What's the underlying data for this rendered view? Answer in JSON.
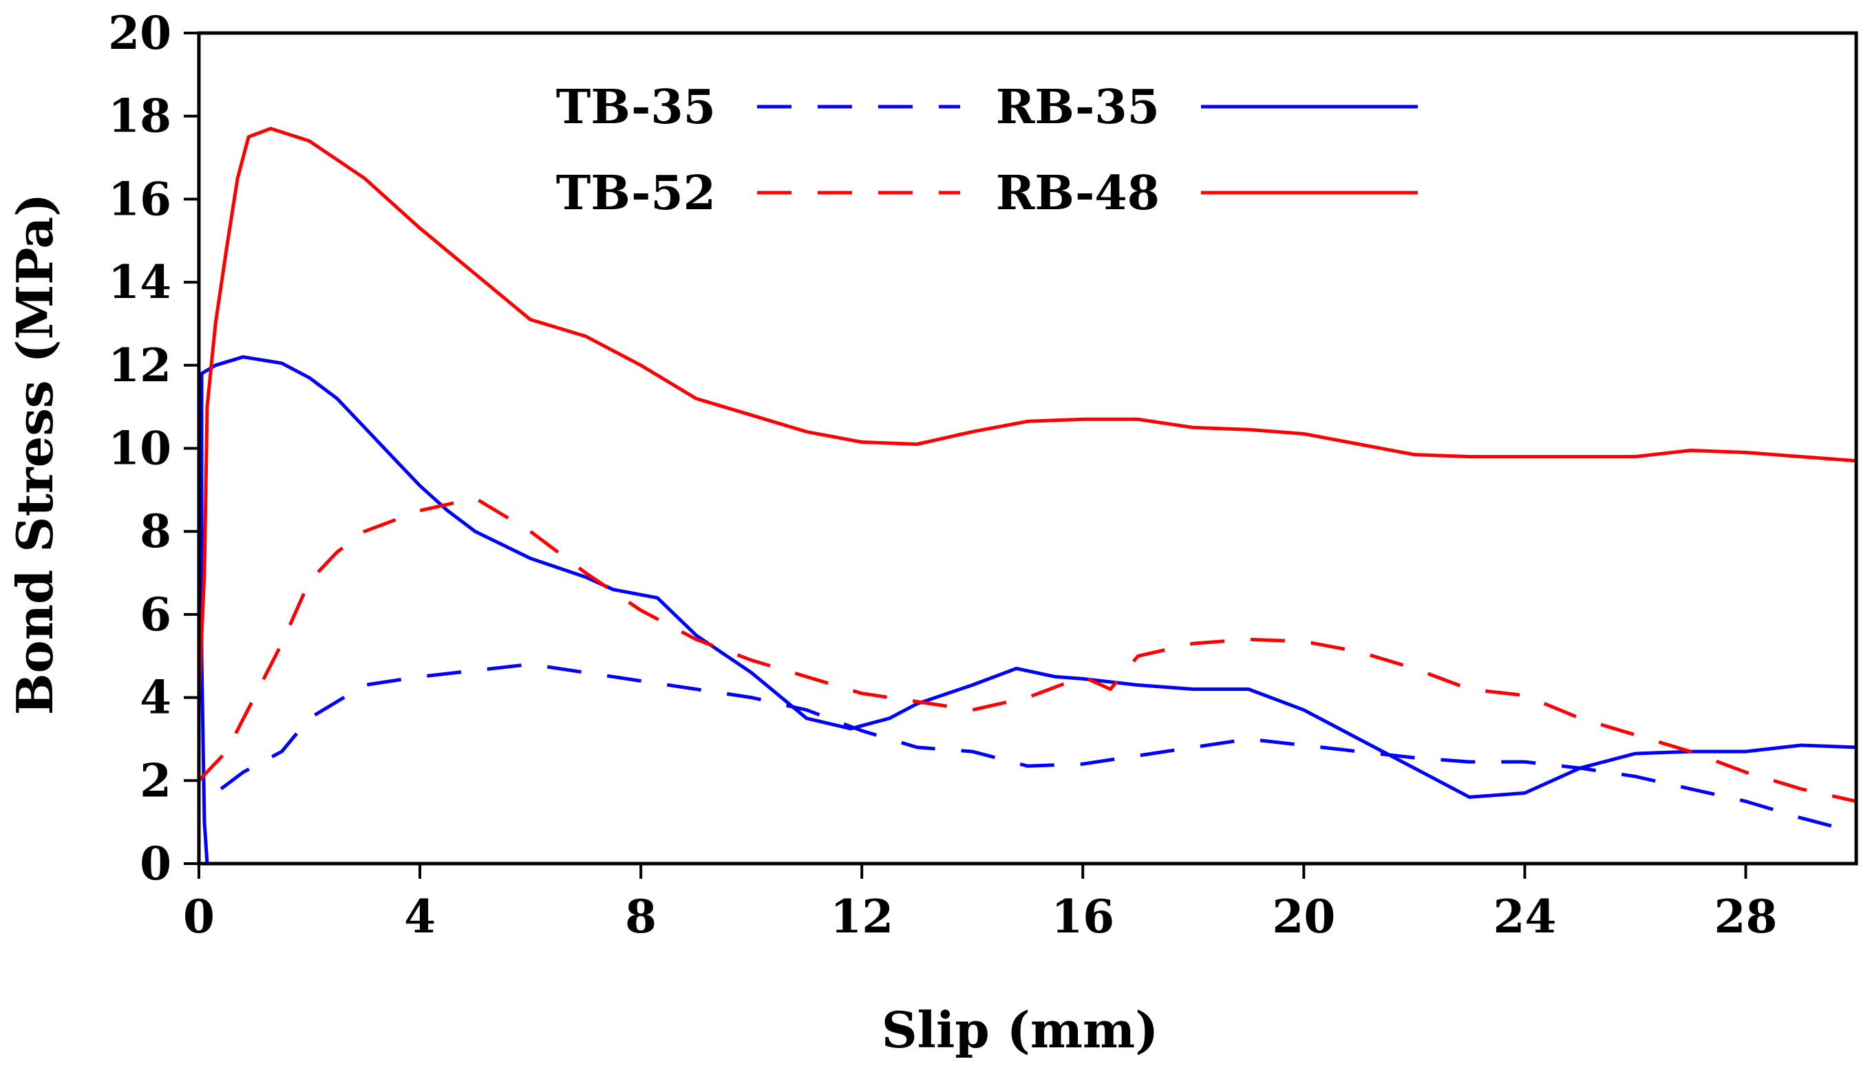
{
  "chart_data": {
    "type": "line",
    "title": "",
    "xlabel": "Slip (mm)",
    "ylabel": "Bond Stress (MPa)",
    "xlim": [
      0,
      30
    ],
    "ylim": [
      0,
      20
    ],
    "x_ticks": [
      0,
      4,
      8,
      12,
      16,
      20,
      24,
      28
    ],
    "y_ticks": [
      0,
      2,
      4,
      6,
      8,
      10,
      12,
      14,
      16,
      18,
      20
    ],
    "x_tick_labels": [
      "0",
      "4",
      "8",
      "12",
      "16",
      "20",
      "24",
      "28"
    ],
    "y_tick_labels": [
      "0",
      "2",
      "4",
      "6",
      "8",
      "10",
      "12",
      "14",
      "16",
      "18",
      "20"
    ],
    "grid": false,
    "legend_position": "top-center",
    "series": [
      {
        "name": "TB-35",
        "color": "#0000ff",
        "dash": "dashed",
        "points": [
          [
            0.4,
            1.8
          ],
          [
            0.8,
            2.2
          ],
          [
            1.5,
            2.7
          ],
          [
            2,
            3.5
          ],
          [
            3,
            4.3
          ],
          [
            4,
            4.5
          ],
          [
            5,
            4.65
          ],
          [
            6,
            4.8
          ],
          [
            7,
            4.6
          ],
          [
            8,
            4.4
          ],
          [
            9,
            4.2
          ],
          [
            10,
            4
          ],
          [
            11,
            3.7
          ],
          [
            12,
            3.2
          ],
          [
            13,
            2.8
          ],
          [
            14,
            2.7
          ],
          [
            15,
            2.35
          ],
          [
            16,
            2.4
          ],
          [
            17,
            2.6
          ],
          [
            18,
            2.8
          ],
          [
            19,
            3
          ],
          [
            20,
            2.85
          ],
          [
            21,
            2.7
          ],
          [
            22,
            2.55
          ],
          [
            23,
            2.45
          ],
          [
            24,
            2.45
          ],
          [
            25,
            2.3
          ],
          [
            26,
            2.1
          ],
          [
            27,
            1.8
          ],
          [
            28,
            1.5
          ],
          [
            29,
            1.1
          ],
          [
            30,
            0.75
          ]
        ]
      },
      {
        "name": "RB-35",
        "color": "#0000ff",
        "dash": "solid",
        "points": [
          [
            0.15,
            0
          ],
          [
            0.1,
            1
          ],
          [
            0.05,
            5
          ],
          [
            0.05,
            11.8
          ],
          [
            0.3,
            12
          ],
          [
            0.8,
            12.2
          ],
          [
            1.5,
            12.05
          ],
          [
            2,
            11.7
          ],
          [
            2.5,
            11.2
          ],
          [
            3,
            10.5
          ],
          [
            3.5,
            9.8
          ],
          [
            4,
            9.1
          ],
          [
            4.5,
            8.5
          ],
          [
            5,
            8
          ],
          [
            6,
            7.35
          ],
          [
            7,
            6.9
          ],
          [
            7.5,
            6.6
          ],
          [
            8.3,
            6.4
          ],
          [
            9,
            5.5
          ],
          [
            10,
            4.6
          ],
          [
            11,
            3.5
          ],
          [
            11.8,
            3.25
          ],
          [
            12.5,
            3.5
          ],
          [
            13,
            3.85
          ],
          [
            14,
            4.3
          ],
          [
            14.8,
            4.7
          ],
          [
            15.5,
            4.5
          ],
          [
            16,
            4.45
          ],
          [
            17,
            4.3
          ],
          [
            18,
            4.2
          ],
          [
            19,
            4.2
          ],
          [
            20,
            3.7
          ],
          [
            21,
            3
          ],
          [
            22,
            2.3
          ],
          [
            23,
            1.6
          ],
          [
            24,
            1.7
          ],
          [
            25,
            2.3
          ],
          [
            26,
            2.65
          ],
          [
            27,
            2.7
          ],
          [
            28,
            2.7
          ],
          [
            29,
            2.85
          ],
          [
            30,
            2.8
          ]
        ]
      },
      {
        "name": "TB-52",
        "color": "#ff0000",
        "dash": "dashed",
        "points": [
          [
            0,
            2
          ],
          [
            0.5,
            2.7
          ],
          [
            1,
            4
          ],
          [
            1.5,
            5.3
          ],
          [
            2,
            6.8
          ],
          [
            2.5,
            7.5
          ],
          [
            3,
            8
          ],
          [
            4,
            8.5
          ],
          [
            5,
            8.8
          ],
          [
            6,
            8
          ],
          [
            7,
            7
          ],
          [
            8,
            6.1
          ],
          [
            9,
            5.4
          ],
          [
            10,
            4.9
          ],
          [
            11,
            4.5
          ],
          [
            12,
            4.1
          ],
          [
            13,
            3.9
          ],
          [
            14,
            3.7
          ],
          [
            15,
            4
          ],
          [
            16,
            4.5
          ],
          [
            16.5,
            4.2
          ],
          [
            17,
            5
          ],
          [
            18,
            5.3
          ],
          [
            19,
            5.4
          ],
          [
            20,
            5.35
          ],
          [
            21,
            5.1
          ],
          [
            22,
            4.7
          ],
          [
            23,
            4.2
          ],
          [
            24,
            4.05
          ],
          [
            25,
            3.5
          ],
          [
            26,
            3.1
          ],
          [
            27,
            2.7
          ],
          [
            28,
            2.2
          ],
          [
            29,
            1.8
          ],
          [
            30,
            1.5
          ]
        ]
      },
      {
        "name": "RB-48",
        "color": "#ff0000",
        "dash": "solid",
        "points": [
          [
            0,
            0.3
          ],
          [
            0,
            4
          ],
          [
            0.1,
            7
          ],
          [
            0.15,
            11
          ],
          [
            0.3,
            13
          ],
          [
            0.5,
            14.8
          ],
          [
            0.7,
            16.5
          ],
          [
            0.9,
            17.5
          ],
          [
            1.3,
            17.7
          ],
          [
            2,
            17.4
          ],
          [
            3,
            16.5
          ],
          [
            4,
            15.3
          ],
          [
            5,
            14.2
          ],
          [
            6,
            13.1
          ],
          [
            7,
            12.7
          ],
          [
            8,
            12
          ],
          [
            9,
            11.2
          ],
          [
            10,
            10.8
          ],
          [
            11,
            10.4
          ],
          [
            12,
            10.15
          ],
          [
            13,
            10.1
          ],
          [
            14,
            10.4
          ],
          [
            15,
            10.65
          ],
          [
            16,
            10.7
          ],
          [
            17,
            10.7
          ],
          [
            18,
            10.5
          ],
          [
            19,
            10.45
          ],
          [
            20,
            10.35
          ],
          [
            21,
            10.1
          ],
          [
            22,
            9.85
          ],
          [
            23,
            9.8
          ],
          [
            24,
            9.8
          ],
          [
            25,
            9.8
          ],
          [
            26,
            9.8
          ],
          [
            27,
            9.95
          ],
          [
            28,
            9.9
          ],
          [
            29,
            9.8
          ],
          [
            30,
            9.7
          ]
        ]
      }
    ]
  }
}
